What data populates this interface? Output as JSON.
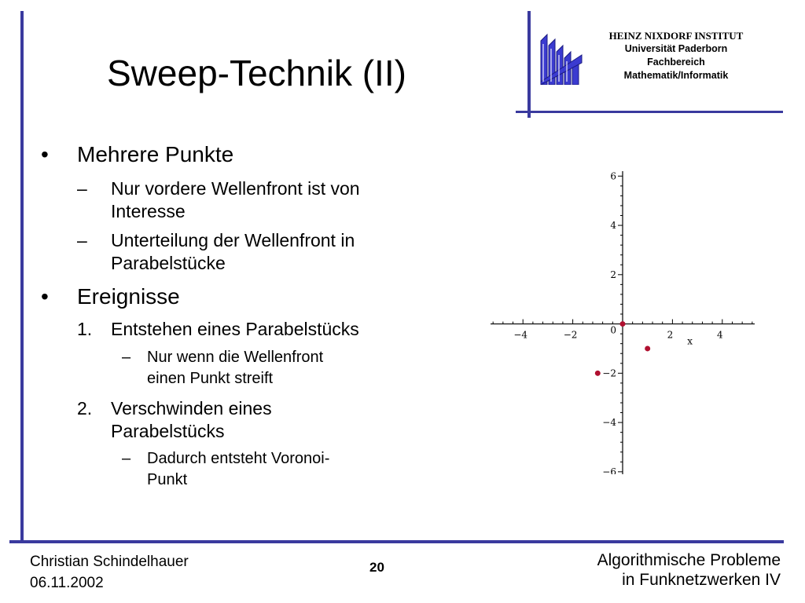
{
  "header": {
    "title": "Sweep-Technik (II)",
    "institute": {
      "name": "HEINZ NIXDORF INSTITUT",
      "lines": [
        "Universität Paderborn",
        "Fachbereich",
        "Mathematik/Informatik"
      ]
    },
    "logo_icon": "university-logo-icon",
    "rule_color": "#3a3a9e"
  },
  "body": {
    "bullets": [
      {
        "marker": "•",
        "text": "Mehrere Punkte",
        "children": [
          {
            "marker": "–",
            "lines": [
              "Nur vordere Wellenfront ist von",
              "Interesse"
            ]
          },
          {
            "marker": "–",
            "lines": [
              "Unterteilung der Wellenfront in",
              "Parabelstücke"
            ]
          }
        ]
      },
      {
        "marker": "•",
        "text": "Ereignisse",
        "children": [
          {
            "marker": "1.",
            "lines": [
              "Entstehen eines Parabelstücks"
            ],
            "children": [
              {
                "marker": "–",
                "lines": [
                  "Nur wenn die Wellenfront",
                  "einen Punkt streift"
                ]
              }
            ]
          },
          {
            "marker": "2.",
            "lines": [
              "Verschwinden eines",
              "Parabelstücks"
            ],
            "children": [
              {
                "marker": "–",
                "lines": [
                  "Dadurch entsteht Voronoi-",
                  "Punkt"
                ]
              }
            ]
          }
        ]
      }
    ]
  },
  "chart_data": {
    "type": "scatter",
    "x_ticks": [
      "−4",
      "−2",
      "2",
      "4"
    ],
    "y_ticks": [
      "6",
      "4",
      "2",
      "−2",
      "−4",
      "−6"
    ],
    "origin_label": "0",
    "xlabel": "x",
    "xlim": [
      -5.3,
      5.3
    ],
    "ylim": [
      -6.1,
      6.2
    ],
    "points": [
      {
        "x": 0.0,
        "y": 0.0
      },
      {
        "x": 1.0,
        "y": -1.0
      },
      {
        "x": -1.0,
        "y": -2.0
      }
    ],
    "point_color": "#b01030",
    "axis_color": "#000000"
  },
  "footer": {
    "author": "Christian Schindelhauer",
    "date": "06.11.2002",
    "page": "20",
    "course_lines": [
      "Algorithmische Probleme",
      "in Funknetzwerken IV"
    ]
  }
}
